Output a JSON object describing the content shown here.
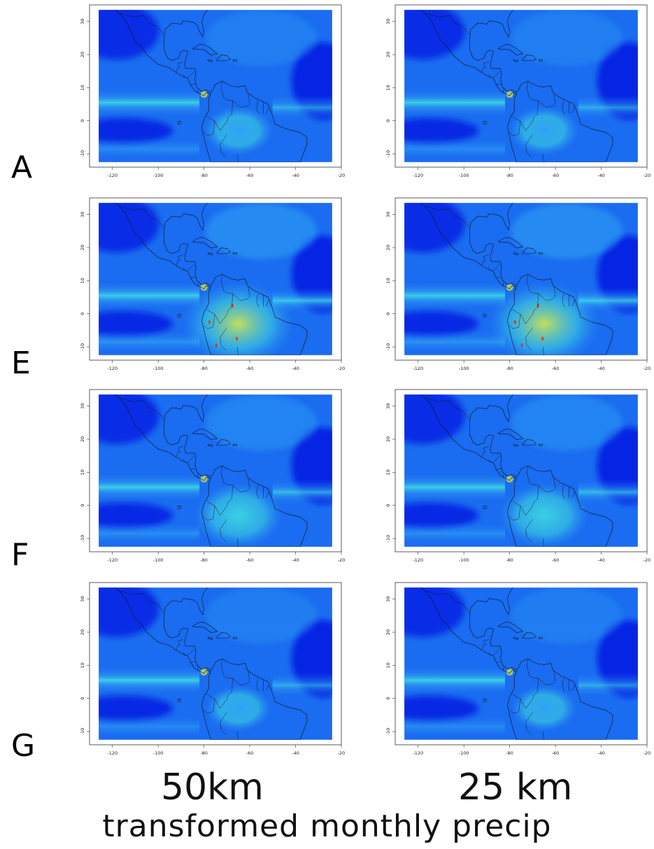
{
  "rows": [
    {
      "label": "A",
      "intensity": 0.45
    },
    {
      "label": "E",
      "intensity": 1.0
    },
    {
      "label": "F",
      "intensity": 0.7
    },
    {
      "label": "G",
      "intensity": 0.4
    }
  ],
  "columns": [
    {
      "label": "50km"
    },
    {
      "label": "25 km"
    }
  ],
  "footer": "transformed monthly precip",
  "chart_data": {
    "type": "heatmap",
    "title": "",
    "xlabel": "",
    "ylabel": "",
    "xlim": [
      -130,
      -20
    ],
    "ylim": [
      -14,
      35
    ],
    "x_ticks": [
      "-120",
      "-100",
      "-80",
      "-60",
      "-40",
      "-20"
    ],
    "x_tick_values": [
      -120,
      -100,
      -80,
      -60,
      -40,
      -20
    ],
    "y_ticks": [
      "-10",
      "0",
      "10",
      "20",
      "30"
    ],
    "y_tick_values": [
      -10,
      0,
      10,
      20,
      30
    ],
    "data_extent": {
      "lon": [
        -126,
        -24
      ],
      "lat": [
        -12.5,
        33.5
      ]
    },
    "colormap": [
      "#0010e0",
      "#1a6cf0",
      "#33a8f5",
      "#40e0e0",
      "#e0f040",
      "#ff2000"
    ]
  }
}
